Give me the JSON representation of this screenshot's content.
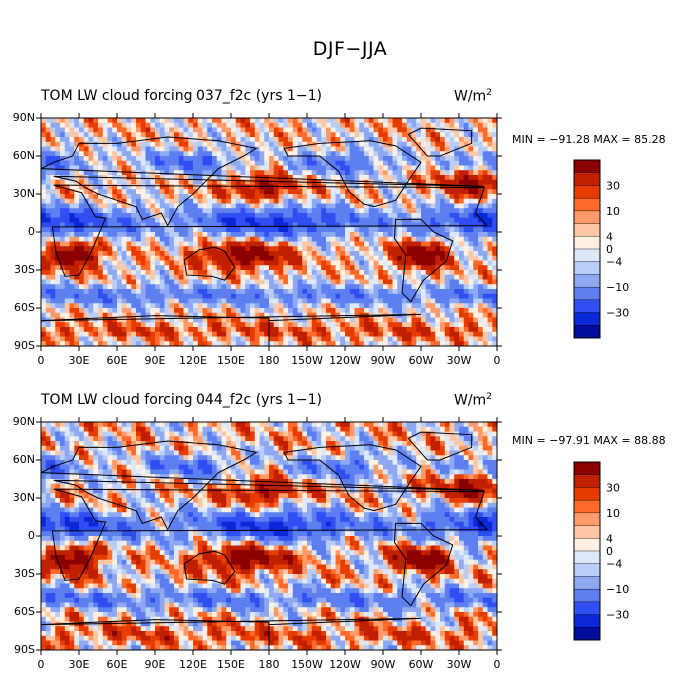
{
  "figure_title": "DJF−JJA",
  "panels": [
    {
      "left_title": "TOM LW cloud forcing",
      "case_title": "037_f2c (yrs 1−1)",
      "units": "W/m",
      "units_sup": "2",
      "minmax": "MIN = −91.28 MAX =  85.28"
    },
    {
      "left_title": "TOM LW cloud forcing",
      "case_title": "044_f2c (yrs 1−1)",
      "units": "W/m",
      "units_sup": "2",
      "minmax": "MIN = −97.91 MAX =  88.88"
    }
  ],
  "chart_data": [
    {
      "type": "heatmap",
      "title": "TOM LW cloud forcing 037_f2c (yrs 1−1)",
      "units": "W/m2",
      "stats": {
        "min": -91.28,
        "max": 85.28
      },
      "x_ticks": [
        "0",
        "30E",
        "60E",
        "90E",
        "120E",
        "150E",
        "180",
        "150W",
        "120W",
        "90W",
        "60W",
        "30W",
        "0"
      ],
      "y_ticks": [
        "90N",
        "60N",
        "30N",
        "0",
        "30S",
        "60S",
        "90S"
      ],
      "xlim": [
        0,
        360
      ],
      "ylim": [
        -90,
        90
      ],
      "colorbar_ticks": [
        "30",
        "10",
        "4",
        "0",
        "−4",
        "−10",
        "−30"
      ],
      "colorbar_colors": [
        "#8b0000",
        "#c01f00",
        "#e63c00",
        "#ff6a2b",
        "#ff9a6a",
        "#ffc7a3",
        "#fff0e2",
        "#dde9fb",
        "#b8cdf7",
        "#8ea9f2",
        "#5e7ff0",
        "#2f4ff2",
        "#0b28d8",
        "#000c9c"
      ]
    },
    {
      "type": "heatmap",
      "title": "TOM LW cloud forcing 044_f2c (yrs 1−1)",
      "units": "W/m2",
      "stats": {
        "min": -97.91,
        "max": 88.88
      },
      "x_ticks": [
        "0",
        "30E",
        "60E",
        "90E",
        "120E",
        "150E",
        "180",
        "150W",
        "120W",
        "90W",
        "60W",
        "30W",
        "0"
      ],
      "y_ticks": [
        "90N",
        "60N",
        "30N",
        "0",
        "30S",
        "60S",
        "90S"
      ],
      "xlim": [
        0,
        360
      ],
      "ylim": [
        -90,
        90
      ],
      "colorbar_ticks": [
        "30",
        "10",
        "4",
        "0",
        "−4",
        "−10",
        "−30"
      ],
      "colorbar_colors": [
        "#8b0000",
        "#c01f00",
        "#e63c00",
        "#ff6a2b",
        "#ff9a6a",
        "#ffc7a3",
        "#fff0e2",
        "#dde9fb",
        "#b8cdf7",
        "#8ea9f2",
        "#5e7ff0",
        "#2f4ff2",
        "#0b28d8",
        "#000c9c"
      ]
    }
  ]
}
